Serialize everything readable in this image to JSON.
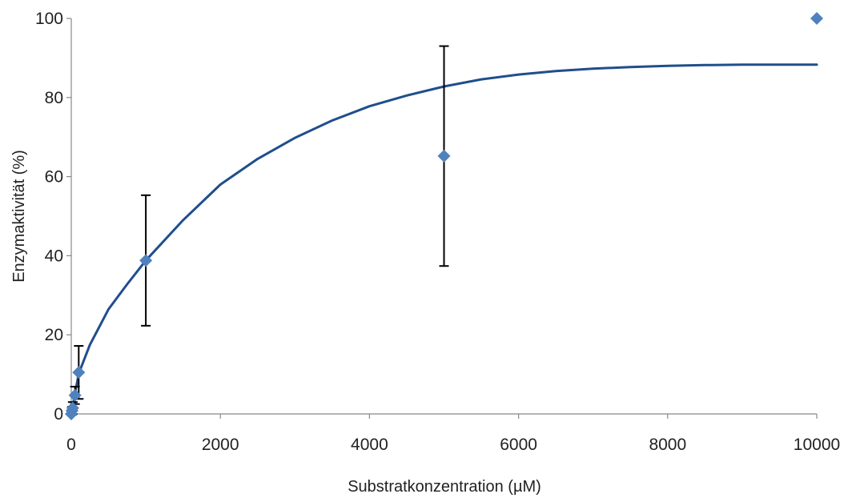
{
  "chart_data": {
    "type": "scatter",
    "title": "",
    "xlabel": "Substratkonzentration (µM)",
    "ylabel": "Enzymaktivität (%)",
    "xlim": [
      0,
      10000
    ],
    "ylim": [
      0,
      100
    ],
    "x_ticks": [
      0,
      2000,
      4000,
      6000,
      8000,
      10000
    ],
    "y_ticks": [
      0,
      20,
      40,
      60,
      80,
      100
    ],
    "grid": false,
    "legend": "none",
    "colors": {
      "points": "#4f81bd",
      "curve": "#1f4e8c",
      "error_bars": "#000000",
      "axis": "#888888"
    },
    "points": [
      {
        "x": 0,
        "y": 0,
        "err": 0
      },
      {
        "x": 10,
        "y": 0.8,
        "err": 1.0
      },
      {
        "x": 20,
        "y": 1.5,
        "err": 1.5
      },
      {
        "x": 50,
        "y": 4.7,
        "err": 2.2
      },
      {
        "x": 100,
        "y": 10.5,
        "err": 6.7
      },
      {
        "x": 1000,
        "y": 38.8,
        "err": 16.5
      },
      {
        "x": 5000,
        "y": 65.2,
        "err": 27.8
      },
      {
        "x": 10000,
        "y": 100,
        "err": 0
      }
    ],
    "fit_curve": [
      [
        0,
        0
      ],
      [
        100,
        10.2
      ],
      [
        250,
        17.5
      ],
      [
        500,
        26.5
      ],
      [
        750,
        32.8
      ],
      [
        1000,
        38.8
      ],
      [
        1500,
        49.0
      ],
      [
        2000,
        58.0
      ],
      [
        2500,
        64.5
      ],
      [
        3000,
        69.8
      ],
      [
        3500,
        74.2
      ],
      [
        4000,
        77.8
      ],
      [
        4500,
        80.5
      ],
      [
        5000,
        82.8
      ],
      [
        5500,
        84.6
      ],
      [
        6000,
        85.8
      ],
      [
        6500,
        86.7
      ],
      [
        7000,
        87.3
      ],
      [
        7500,
        87.7
      ],
      [
        8000,
        88.0
      ],
      [
        8500,
        88.2
      ],
      [
        9000,
        88.3
      ],
      [
        9500,
        88.3
      ],
      [
        10000,
        88.3
      ]
    ]
  }
}
